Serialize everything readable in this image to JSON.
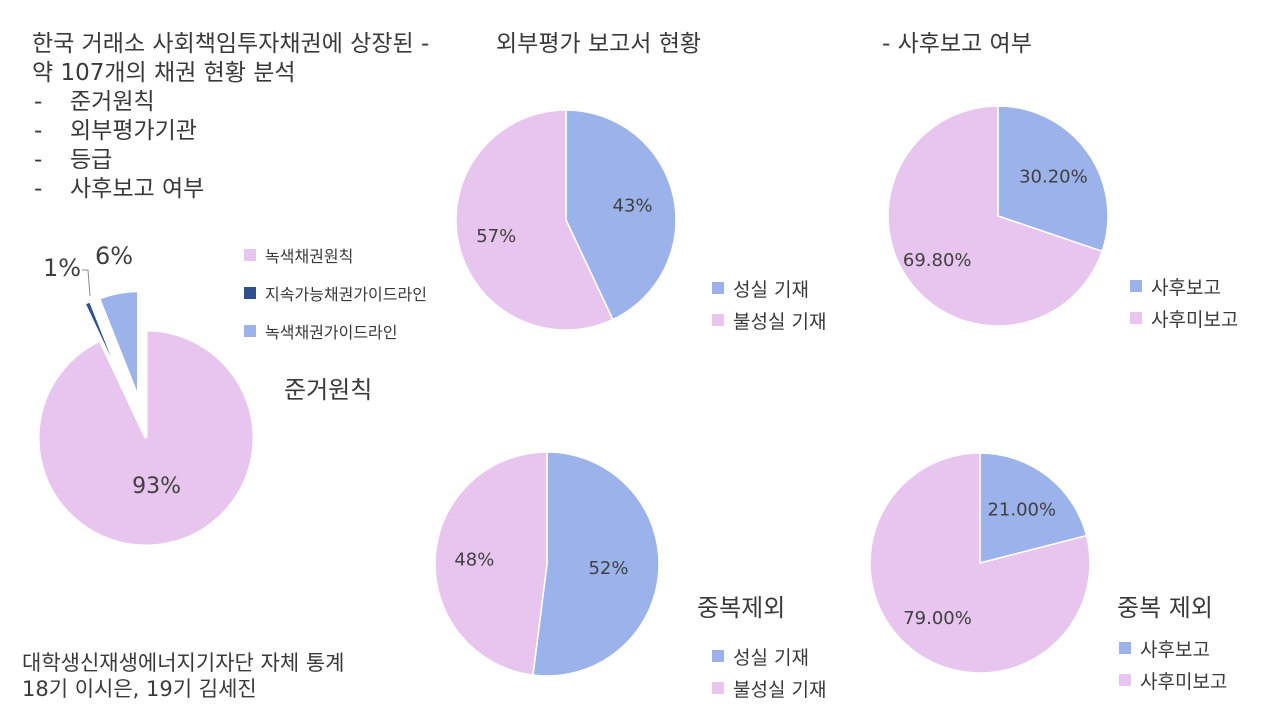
{
  "colors": {
    "pink": "#e8c5ee",
    "blue": "#9bb3ea",
    "navy": "#2f4f8f"
  },
  "header": {
    "title_line1": "한국 거래소 사회책임투자채권에 상장된  -",
    "title_line2": "약 107개의 채권 현황 분석",
    "bullets": [
      "준거원칙",
      "외부평가기관",
      "등급",
      "사후보고 여부"
    ],
    "mid_title": "외부평가 보고서 현황",
    "right_title": "-   사후보고 여부"
  },
  "footer": {
    "line1": "대학생신재생에너지기자단 자체 통계",
    "line2": "18기 이시은, 19기 김세진"
  },
  "chart_data": [
    {
      "type": "pie",
      "title": "준거원칙",
      "legend_position": "top-right",
      "slices": [
        {
          "label": "녹색채권원칙",
          "value": 93,
          "display": "93%",
          "color": "#e8c5ee"
        },
        {
          "label": "지속가능채권가이드라인",
          "value": 1,
          "display": "1%",
          "color": "#2f4f8f"
        },
        {
          "label": "녹색채권가이드라인",
          "value": 6,
          "display": "6%",
          "color": "#9bb3ea"
        }
      ]
    },
    {
      "type": "pie",
      "title": "",
      "legend_position": "right",
      "slices": [
        {
          "label": "성실 기재",
          "value": 43,
          "display": "43%",
          "color": "#9bb3ea"
        },
        {
          "label": "불성실 기재",
          "value": 57,
          "display": "57%",
          "color": "#e8c5ee"
        }
      ]
    },
    {
      "type": "pie",
      "title": "",
      "legend_position": "right",
      "slices": [
        {
          "label": "사후보고",
          "value": 30.2,
          "display": "30.20%",
          "color": "#9bb3ea"
        },
        {
          "label": "사후미보고",
          "value": 69.8,
          "display": "69.80%",
          "color": "#e8c5ee"
        }
      ]
    },
    {
      "type": "pie",
      "title": "중복제외",
      "legend_position": "right",
      "slices": [
        {
          "label": "성실 기재",
          "value": 52,
          "display": "52%",
          "color": "#9bb3ea"
        },
        {
          "label": "불성실 기재",
          "value": 48,
          "display": "48%",
          "color": "#e8c5ee"
        }
      ]
    },
    {
      "type": "pie",
      "title": "중복 제외",
      "legend_position": "right",
      "slices": [
        {
          "label": "사후보고",
          "value": 21,
          "display": "21.00%",
          "color": "#9bb3ea"
        },
        {
          "label": "사후미보고",
          "value": 79,
          "display": "79.00%",
          "color": "#e8c5ee"
        }
      ]
    }
  ]
}
